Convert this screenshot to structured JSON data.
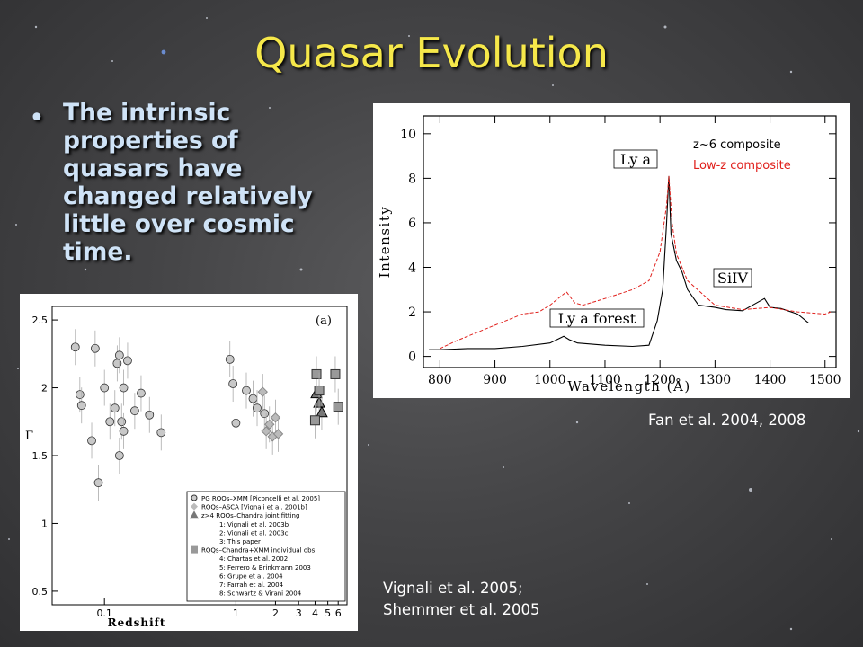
{
  "slide": {
    "title": "Quasar Evolution",
    "bullet": "The intrinsic properties of quasars have changed relatively little over cosmic time.",
    "bullet_marker": "•",
    "colors": {
      "title": "#f6e84a",
      "bullet": "#cfe3f7",
      "caption": "#ffffff"
    }
  },
  "spectrum_figure": {
    "caption": "Fan et al. 2004, 2008",
    "legend": {
      "z6": "z~6 composite",
      "lowz": "Low-z composite"
    },
    "labels": {
      "lya": "Ly a",
      "forest": "Ly a forest",
      "siiv": "SiIV"
    },
    "chart_data": {
      "type": "line",
      "xlabel": "Wavelength (Å)",
      "ylabel": "Intensity",
      "xlim": [
        770,
        1520
      ],
      "ylim": [
        -0.5,
        10.8
      ],
      "xticks": [
        800,
        900,
        1000,
        1100,
        1200,
        1300,
        1400,
        1500
      ],
      "yticks": [
        0,
        2,
        4,
        6,
        8,
        10
      ],
      "series": [
        {
          "name": "z~6 composite",
          "color": "#000000",
          "x": [
            780,
            800,
            850,
            900,
            950,
            1000,
            1025,
            1035,
            1050,
            1100,
            1150,
            1180,
            1195,
            1205,
            1212,
            1216,
            1220,
            1230,
            1240,
            1250,
            1270,
            1300,
            1320,
            1350,
            1390,
            1400,
            1420,
            1450,
            1470
          ],
          "y": [
            0.3,
            0.3,
            0.35,
            0.35,
            0.45,
            0.6,
            0.9,
            0.75,
            0.6,
            0.5,
            0.45,
            0.5,
            1.6,
            3.0,
            6.0,
            8.1,
            5.5,
            4.3,
            3.8,
            3.0,
            2.3,
            2.2,
            2.1,
            2.05,
            2.6,
            2.2,
            2.15,
            1.9,
            1.5
          ]
        },
        {
          "name": "Low-z composite",
          "color": "#e0201c",
          "x": [
            800,
            830,
            860,
            900,
            950,
            980,
            1000,
            1020,
            1030,
            1045,
            1060,
            1100,
            1150,
            1180,
            1200,
            1212,
            1216,
            1222,
            1230,
            1250,
            1300,
            1350,
            1400,
            1450,
            1500,
            1510
          ],
          "y": [
            0.35,
            0.7,
            1.0,
            1.4,
            1.9,
            2.0,
            2.3,
            2.7,
            2.9,
            2.4,
            2.3,
            2.6,
            3.0,
            3.4,
            4.7,
            6.8,
            8.1,
            6.0,
            4.6,
            3.4,
            2.3,
            2.1,
            2.2,
            2.0,
            1.9,
            2.0
          ]
        }
      ]
    }
  },
  "xray_figure": {
    "caption_line1": "Vignali et al. 2005;",
    "caption_line2": "Shemmer et al. 2005",
    "panel_label": "(a)",
    "legend": [
      "PG RQQs–XMM [Piconcelli et al. 2005]",
      "RQQs–ASCA [Vignali et al. 2001b]",
      "z>4 RQQs–Chandra joint fitting",
      "1: Vignali et al. 2003b",
      "2: Vignali et al. 2003c",
      "3: This paper",
      "RQQs–Chandra+XMM individual obs.",
      "4: Chartas et al. 2002",
      "5: Ferrero & Brinkmann 2003",
      "6: Grupe et al. 2004",
      "7: Farrah et al. 2004",
      "8: Schwartz & Virani 2004"
    ],
    "chart_data": {
      "type": "scatter",
      "xlabel": "Redshift",
      "ylabel": "Γ",
      "xscale": "log",
      "xlim": [
        0.04,
        7
      ],
      "ylim": [
        0.4,
        2.6
      ],
      "xticks": [
        "0.1",
        "1",
        "2",
        "3",
        "4",
        "5",
        "6"
      ],
      "yticks": [
        "0.5",
        "1",
        "1.5",
        "2",
        "2.5"
      ],
      "series": [
        {
          "name": "PG RQQs–XMM [Piconcelli et al. 2005]",
          "marker": "circle",
          "points": [
            [
              0.06,
              2.3
            ],
            [
              0.065,
              1.95
            ],
            [
              0.067,
              1.87
            ],
            [
              0.08,
              1.61
            ],
            [
              0.085,
              2.29
            ],
            [
              0.09,
              1.3
            ],
            [
              0.1,
              2.0
            ],
            [
              0.11,
              1.75
            ],
            [
              0.12,
              1.85
            ],
            [
              0.125,
              2.18
            ],
            [
              0.13,
              2.24
            ],
            [
              0.13,
              1.5
            ],
            [
              0.135,
              1.75
            ],
            [
              0.14,
              2.0
            ],
            [
              0.14,
              1.68
            ],
            [
              0.15,
              2.2
            ],
            [
              0.17,
              1.83
            ],
            [
              0.19,
              1.96
            ],
            [
              0.22,
              1.8
            ],
            [
              0.27,
              1.67
            ],
            [
              0.9,
              2.21
            ],
            [
              0.95,
              2.03
            ],
            [
              1.0,
              1.74
            ],
            [
              1.2,
              1.98
            ],
            [
              1.35,
              1.92
            ],
            [
              1.45,
              1.85
            ],
            [
              1.65,
              1.81
            ]
          ]
        },
        {
          "name": "RQQs–ASCA [Vignali et al. 2001b]",
          "marker": "diamond",
          "points": [
            [
              1.6,
              1.97
            ],
            [
              1.7,
              1.68
            ],
            [
              1.8,
              1.73
            ],
            [
              1.9,
              1.64
            ],
            [
              2.0,
              1.78
            ],
            [
              2.1,
              1.66
            ]
          ]
        },
        {
          "name": "z>4 RQQs–Chandra joint fitting",
          "marker": "triangle",
          "points": [
            [
              4.1,
              1.96
            ],
            [
              4.3,
              1.89
            ],
            [
              4.5,
              1.82
            ]
          ]
        },
        {
          "name": "RQQs–Chandra+XMM individual obs.",
          "marker": "square",
          "points": [
            [
              4.0,
              1.76
            ],
            [
              4.1,
              2.1
            ],
            [
              4.3,
              1.98
            ],
            [
              5.7,
              2.1
            ],
            [
              6.0,
              1.86
            ]
          ]
        }
      ],
      "point_labels": [
        "5",
        "4",
        "6",
        "3",
        "7",
        "8"
      ]
    }
  }
}
